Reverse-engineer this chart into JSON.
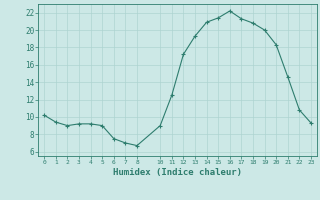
{
  "x": [
    0,
    1,
    2,
    3,
    4,
    5,
    6,
    7,
    8,
    10,
    11,
    12,
    13,
    14,
    15,
    16,
    17,
    18,
    19,
    20,
    21,
    22,
    23
  ],
  "y": [
    10.2,
    9.4,
    9.0,
    9.2,
    9.2,
    9.0,
    7.5,
    7.0,
    6.7,
    9.0,
    12.5,
    17.2,
    19.3,
    20.9,
    21.4,
    22.2,
    21.3,
    20.8,
    20.0,
    18.3,
    14.6,
    10.8,
    9.3
  ],
  "xticks": [
    0,
    1,
    2,
    3,
    4,
    5,
    6,
    7,
    8,
    10,
    11,
    12,
    13,
    14,
    15,
    16,
    17,
    18,
    19,
    20,
    21,
    22,
    23
  ],
  "yticks": [
    6,
    8,
    10,
    12,
    14,
    16,
    18,
    20,
    22
  ],
  "ylim": [
    5.5,
    23.0
  ],
  "xlim": [
    -0.5,
    23.5
  ],
  "xlabel": "Humidex (Indice chaleur)",
  "line_color": "#2e7d6e",
  "marker": "+",
  "bg_color": "#cce8e6",
  "grid_color": "#aed4d1",
  "title": ""
}
